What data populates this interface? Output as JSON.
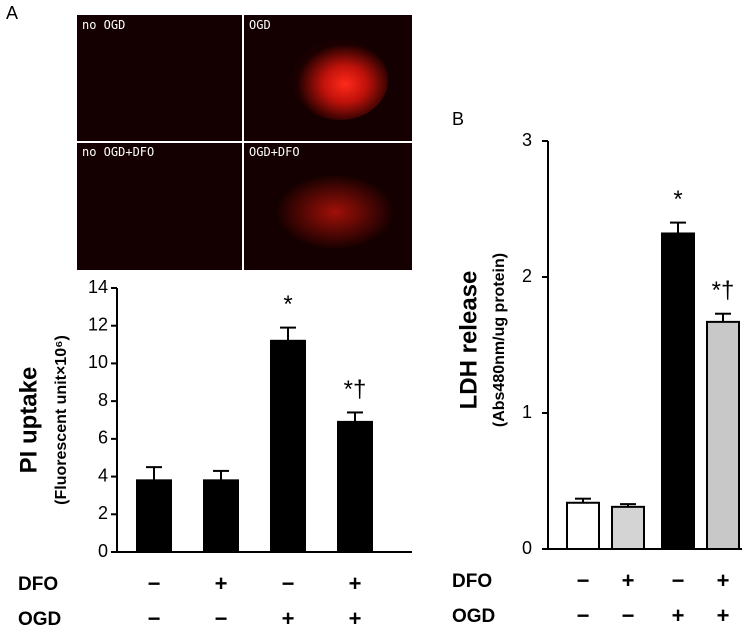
{
  "figure": {
    "panel_labels": [
      "A",
      "B"
    ],
    "image_labels": [
      "no OGD",
      "OGD",
      "no OGD+DFO",
      "OGD+DFO"
    ]
  },
  "chart_data": [
    {
      "type": "bar",
      "ylabel": "PI uptake",
      "ylabel_sub": "(Fluorescent unit×10⁶)",
      "values": [
        3.8,
        3.8,
        11.2,
        6.9
      ],
      "errors": [
        0.7,
        0.5,
        0.7,
        0.5
      ],
      "colors": [
        "#000000",
        "#000000",
        "#000000",
        "#000000"
      ],
      "annotations": [
        null,
        null,
        "*",
        "*†"
      ],
      "conditions": [
        {
          "name": "DFO",
          "signs": [
            "−",
            "+",
            "−",
            "+"
          ]
        },
        {
          "name": "OGD",
          "signs": [
            "−",
            "−",
            "+",
            "+"
          ]
        }
      ],
      "ylim": [
        0,
        14
      ],
      "yticks": [
        0,
        2,
        4,
        6,
        8,
        10,
        12,
        14
      ]
    },
    {
      "type": "bar",
      "ylabel": "LDH release",
      "ylabel_sub": "(Abs480nm/ug protein)",
      "values": [
        0.34,
        0.31,
        2.32,
        1.67
      ],
      "errors": [
        0.03,
        0.02,
        0.08,
        0.06
      ],
      "colors": [
        "#ffffff",
        "#d4d4d4",
        "#000000",
        "#c8c8c8"
      ],
      "annotations": [
        null,
        null,
        "*",
        "*†"
      ],
      "conditions": [
        {
          "name": "DFO",
          "signs": [
            "−",
            "+",
            "−",
            "+"
          ]
        },
        {
          "name": "OGD",
          "signs": [
            "−",
            "−",
            "+",
            "+"
          ]
        }
      ],
      "ylim": [
        0,
        3
      ],
      "yticks": [
        0,
        1,
        2,
        3
      ]
    }
  ]
}
